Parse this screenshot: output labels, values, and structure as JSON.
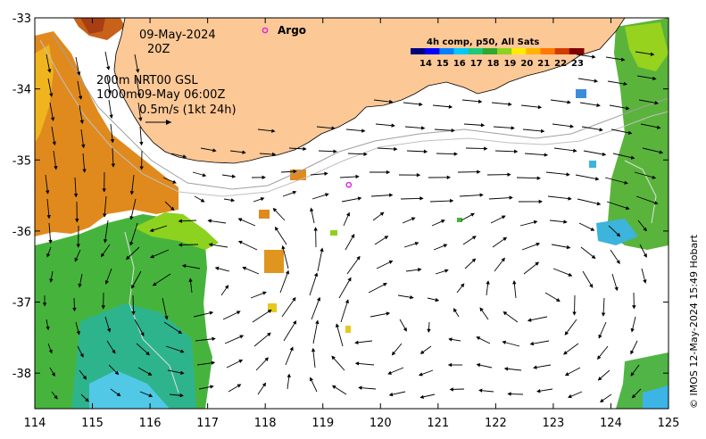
{
  "map": {
    "x_axis": {
      "min": 114,
      "max": 125,
      "ticks": [
        "114",
        "115",
        "116",
        "117",
        "118",
        "119",
        "120",
        "121",
        "122",
        "123",
        "124",
        "125"
      ]
    },
    "y_axis": {
      "min": -38.5,
      "max": -33,
      "ticks": [
        "-33",
        "-34",
        "-35",
        "-36",
        "-37",
        "-38"
      ]
    }
  },
  "annotations": {
    "date": "09-May-2024",
    "time": "20Z",
    "depth_200": "200m  NRT00 GSL",
    "depth_1000": "1000m09-May 06:00Z",
    "scale_label": "0.5m/s (1kt 24h)"
  },
  "legend": {
    "argo_label": "Argo",
    "argo_color": "#e020e0"
  },
  "colorbar": {
    "title": "4h comp, p50, All Sats",
    "ticks": [
      "14",
      "15",
      "16",
      "17",
      "18",
      "19",
      "20",
      "21",
      "22",
      "23"
    ],
    "colors": [
      "#00007f",
      "#0000ff",
      "#0080ff",
      "#00c8ff",
      "#1ec878",
      "#2ea82e",
      "#8cd21e",
      "#ffeb00",
      "#ffb400",
      "#ff7800",
      "#d23c00",
      "#7f0000"
    ]
  },
  "credit": "© IMOS 12-May-2024 15:49 Hobart",
  "argo_float": {
    "lon": 119.45,
    "lat": -35.35
  }
}
